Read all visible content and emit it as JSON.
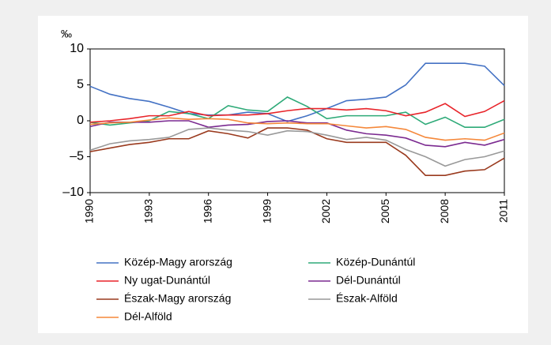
{
  "chart_data": {
    "type": "line",
    "y_label": "‰",
    "x": [
      1990,
      1991,
      1992,
      1993,
      1994,
      1995,
      1996,
      1997,
      1998,
      1999,
      2000,
      2001,
      2002,
      2003,
      2004,
      2005,
      2006,
      2007,
      2008,
      2009,
      2010,
      2011
    ],
    "xlim": [
      1990,
      2011
    ],
    "xticks": [
      1990,
      1993,
      1996,
      1999,
      2002,
      2005,
      2008,
      2011
    ],
    "ylim": [
      -10,
      10
    ],
    "yticks": [
      10,
      5,
      0,
      {
        "value": -5,
        "label": "–5"
      },
      {
        "value": -10,
        "label": "–10"
      }
    ],
    "series": [
      {
        "name": "Közép-Magy arország",
        "color": "#4472c4",
        "values": [
          4.8,
          3.7,
          3.1,
          2.7,
          1.9,
          1.0,
          0.8,
          0.8,
          1.2,
          1.0,
          -0.1,
          0.7,
          1.7,
          2.8,
          3.0,
          3.3,
          5.0,
          8.0,
          8.0,
          8.0,
          7.6,
          4.9
        ]
      },
      {
        "name": "Közép-Dunántúl",
        "color": "#2eaa78",
        "values": [
          -0.2,
          -0.6,
          -0.3,
          0.0,
          1.3,
          1.0,
          0.3,
          2.1,
          1.5,
          1.3,
          3.3,
          2.0,
          0.3,
          0.7,
          0.7,
          0.7,
          1.2,
          -0.5,
          0.5,
          -0.9,
          -0.9,
          0.2
        ]
      },
      {
        "name": "Ny ugat-Dunántúl",
        "color": "#e8242a",
        "values": [
          -0.2,
          0.0,
          0.3,
          0.7,
          0.7,
          1.3,
          0.7,
          0.8,
          0.8,
          1.0,
          1.4,
          1.7,
          1.7,
          1.5,
          1.7,
          1.4,
          0.7,
          1.2,
          2.4,
          0.6,
          1.3,
          2.8
        ]
      },
      {
        "name": "Dél-Dunántúl",
        "color": "#7b2a90",
        "values": [
          -0.8,
          -0.2,
          -0.2,
          -0.2,
          0.0,
          0.0,
          -0.9,
          -0.6,
          -0.5,
          -0.1,
          0.0,
          -0.3,
          -0.3,
          -1.3,
          -1.8,
          -2.0,
          -2.4,
          -3.4,
          -3.6,
          -3.0,
          -3.4,
          -2.6
        ]
      },
      {
        "name": "Észak-Magy arország",
        "color": "#9a3a1e",
        "values": [
          -4.3,
          -3.8,
          -3.3,
          -3.0,
          -2.5,
          -2.5,
          -1.4,
          -1.8,
          -2.4,
          -1.0,
          -1.0,
          -1.3,
          -2.5,
          -3.0,
          -3.0,
          -3.0,
          -4.8,
          -7.6,
          -7.6,
          -7.0,
          -6.8,
          -5.2
        ]
      },
      {
        "name": "Észak-Alföld",
        "color": "#999999",
        "values": [
          -4.1,
          -3.2,
          -2.8,
          -2.6,
          -2.3,
          -1.2,
          -1.0,
          -1.3,
          -1.5,
          -2.0,
          -1.4,
          -1.5,
          -2.0,
          -2.6,
          -2.3,
          -2.7,
          -4.0,
          -5.0,
          -6.3,
          -5.4,
          -5.0,
          -4.2
        ]
      },
      {
        "name": "Dél-Alföld",
        "color": "#f5883a",
        "values": [
          -0.5,
          -0.3,
          -0.2,
          0.1,
          0.4,
          0.2,
          0.3,
          0.2,
          -0.3,
          -0.4,
          -0.3,
          -0.4,
          -0.4,
          -0.7,
          -1.0,
          -0.8,
          -1.2,
          -2.3,
          -2.7,
          -2.5,
          -2.7,
          -1.7
        ]
      }
    ]
  }
}
